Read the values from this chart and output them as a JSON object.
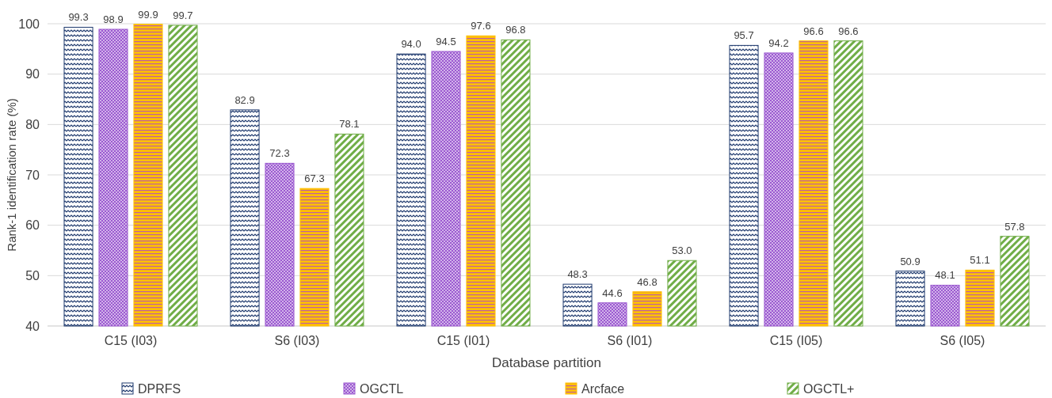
{
  "chart_data": {
    "type": "bar",
    "xlabel": "Database partition",
    "ylabel": "Rank-1 identification rate (%)",
    "categories": [
      "C15 (I03)",
      "S6 (I03)",
      "C15 (I01)",
      "S6 (I01)",
      "C15 (I05)",
      "S6 (I05)"
    ],
    "series": [
      {
        "name": "DPRFS",
        "color": "#1f3a6e",
        "values": [
          99.3,
          82.9,
          94.0,
          48.3,
          95.7,
          50.9
        ],
        "value_labels": [
          "99.3",
          "82.9",
          "94.0",
          "48.3",
          "95.7",
          "50.9"
        ]
      },
      {
        "name": "OGCTL",
        "color": "#9b59d0",
        "values": [
          98.9,
          72.3,
          94.5,
          44.6,
          94.2,
          48.1
        ],
        "value_labels": [
          "98.9",
          "72.3",
          "94.5",
          "44.6",
          "94.2",
          "48.1"
        ]
      },
      {
        "name": "Arcface",
        "color": "#ffc000",
        "values": [
          99.9,
          67.3,
          97.6,
          46.8,
          96.6,
          51.1
        ],
        "value_labels": [
          "99.9",
          "67.3",
          "97.6",
          "46.8",
          "96.6",
          "51.1"
        ]
      },
      {
        "name": "OGCTL+",
        "color": "#70ad47",
        "values": [
          99.7,
          78.1,
          96.8,
          53.0,
          96.6,
          57.8
        ],
        "value_labels": [
          "99.7",
          "78.1",
          "96.8",
          "53.0",
          "96.6",
          "57.8"
        ]
      }
    ],
    "ylim": [
      40,
      100
    ],
    "yticks": [
      40,
      50,
      60,
      70,
      80,
      90,
      100
    ],
    "grid": "y",
    "legend": "bottom"
  }
}
